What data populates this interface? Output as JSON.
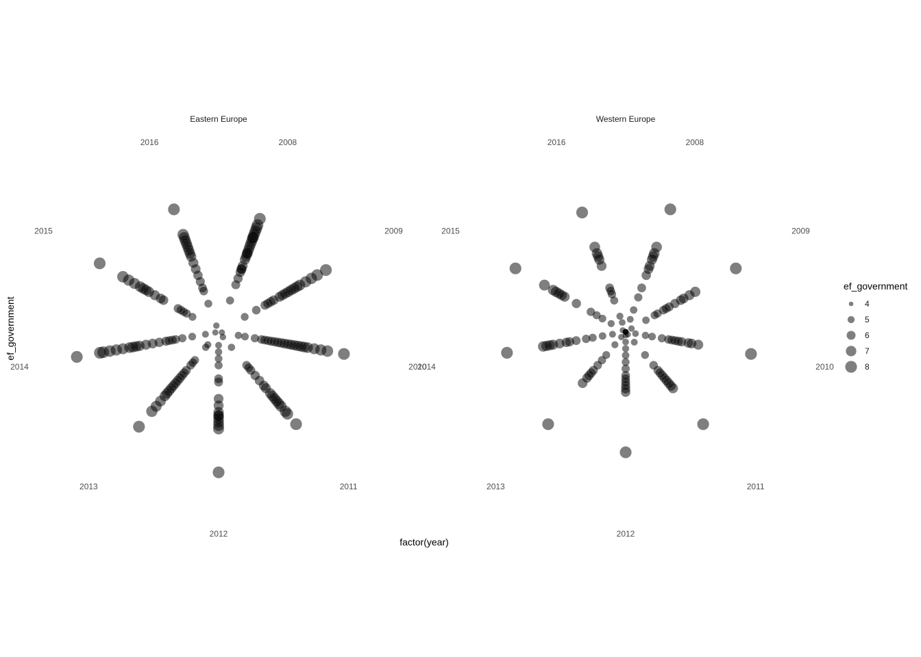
{
  "chart_data": {
    "type": "scatter",
    "coord": "polar",
    "x_label": "factor(year)",
    "y_label": "ef_government",
    "categories": [
      "2008",
      "2009",
      "2010",
      "2011",
      "2012",
      "2013",
      "2014",
      "2015",
      "2016"
    ],
    "size_legend": {
      "title": "ef_government",
      "values": [
        4,
        5,
        6,
        7,
        8
      ]
    },
    "point_color": "#000000",
    "point_alpha": 0.5,
    "ylim": [
      4.5,
      8.9
    ],
    "facets": [
      {
        "title": "Eastern Europe",
        "series": {
          "2008": [
            5.5,
            6.0,
            6.2,
            6.4,
            6.5,
            6.5,
            6.6,
            6.8,
            6.9,
            7.0,
            7.0,
            7.1,
            7.2,
            7.3,
            7.4,
            7.5,
            7.5,
            7.6,
            7.7,
            7.8,
            7.9,
            8.1
          ],
          "2009": [
            5.4,
            5.8,
            6.1,
            6.2,
            6.3,
            6.4,
            6.6,
            6.7,
            6.8,
            6.9,
            7.0,
            7.1,
            7.2,
            7.3,
            7.5,
            7.7,
            7.9,
            8.2
          ],
          "2010": [
            4.6,
            5.1,
            5.3,
            5.6,
            5.8,
            5.9,
            6.0,
            6.1,
            6.2,
            6.3,
            6.4,
            6.5,
            6.6,
            6.7,
            6.8,
            6.9,
            7.0,
            7.1,
            7.2,
            7.4,
            7.6,
            7.8,
            8.3
          ],
          "2011": [
            4.7,
            5.1,
            5.8,
            5.9,
            6.0,
            6.2,
            6.4,
            6.6,
            6.7,
            6.9,
            7.0,
            7.1,
            7.2,
            7.3,
            7.4,
            7.6,
            7.7,
            8.1
          ],
          "2012": [
            4.9,
            5.1,
            5.3,
            5.5,
            5.9,
            6.0,
            6.5,
            6.7,
            6.9,
            7.0,
            7.0,
            7.1,
            7.2,
            7.3,
            7.4,
            8.7
          ],
          "2013": [
            5.0,
            5.1,
            5.6,
            5.7,
            5.8,
            6.0,
            6.1,
            6.2,
            6.3,
            6.4,
            6.5,
            6.6,
            6.7,
            6.8,
            6.9,
            7.0,
            7.2,
            7.4,
            7.6,
            8.2
          ],
          "2014": [
            4.6,
            4.9,
            5.3,
            5.6,
            5.8,
            5.9,
            6.0,
            6.1,
            6.3,
            6.5,
            6.7,
            6.9,
            7.0,
            7.1,
            7.2,
            7.4,
            7.6,
            7.8,
            8.0,
            8.1,
            8.8
          ],
          "2015": [
            5.4,
            5.6,
            5.7,
            5.8,
            5.9,
            6.4,
            6.5,
            6.7,
            6.9,
            7.0,
            7.1,
            7.2,
            7.4,
            7.6,
            7.8,
            8.6
          ],
          "2016": [
            4.7,
            5.4,
            5.8,
            5.9,
            6.1,
            6.3,
            6.5,
            6.7,
            6.9,
            7.0,
            7.1,
            7.2,
            7.3,
            7.4,
            7.5,
            7.6,
            8.4
          ]
        }
      },
      {
        "title": "Western Europe",
        "series": {
          "2008": [
            4.9,
            5.2,
            5.6,
            5.9,
            6.3,
            6.5,
            6.6,
            6.8,
            6.9,
            7.0,
            7.2,
            8.4
          ],
          "2009": [
            4.7,
            5.2,
            5.5,
            5.6,
            5.8,
            5.9,
            6.0,
            6.2,
            6.4,
            6.5,
            6.7,
            6.9,
            8.3
          ],
          "2010": [
            4.5,
            4.8,
            5.1,
            5.3,
            5.6,
            5.8,
            5.9,
            6.0,
            6.1,
            6.2,
            6.4,
            6.5,
            6.7,
            8.3
          ],
          "2011": [
            4.6,
            4.9,
            5.4,
            5.8,
            6.0,
            6.1,
            6.2,
            6.3,
            6.4,
            6.5,
            6.6,
            6.7,
            8.1
          ],
          "2012": [
            4.5,
            4.6,
            4.8,
            5.0,
            5.2,
            5.4,
            5.6,
            5.8,
            5.9,
            6.0,
            6.1,
            6.2,
            6.3,
            8.1
          ],
          "2013": [
            4.7,
            5.0,
            5.4,
            5.6,
            5.8,
            6.0,
            6.1,
            6.2,
            6.3,
            6.5,
            8.1
          ],
          "2014": [
            4.5,
            4.9,
            5.2,
            5.5,
            5.7,
            6.0,
            6.2,
            6.3,
            6.5,
            6.7,
            6.8,
            6.9,
            7.0,
            8.1
          ],
          "2015": [
            4.6,
            5.0,
            5.3,
            5.5,
            5.7,
            6.2,
            6.6,
            6.7,
            6.8,
            6.9,
            7.0,
            7.3,
            8.3
          ],
          "2016": [
            4.5,
            4.8,
            5.0,
            5.5,
            5.7,
            5.8,
            5.9,
            6.6,
            6.8,
            6.9,
            7.0,
            7.2,
            8.3
          ]
        }
      }
    ]
  }
}
